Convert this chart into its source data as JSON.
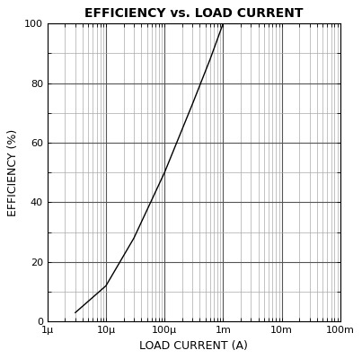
{
  "title": "EFFICIENCY vs. LOAD CURRENT",
  "xlabel": "LOAD CURRENT (A)",
  "ylabel": "EFFICIENCY (%)",
  "xlim": [
    1e-06,
    0.1
  ],
  "ylim": [
    0,
    100
  ],
  "curve_x": [
    3e-06,
    1e-05,
    3e-05,
    0.0001,
    0.0003,
    0.0006,
    0.001,
    0.003,
    0.01,
    0.1
  ],
  "curve_y": [
    3,
    12,
    28,
    50,
    73,
    88,
    100,
    100,
    100,
    100
  ],
  "line_color": "#000000",
  "line_width": 1.0,
  "background_color": "#ffffff",
  "title_fontsize": 10,
  "label_fontsize": 9,
  "tick_fontsize": 8,
  "x_major_ticks": [
    1e-06,
    1e-05,
    0.0001,
    0.001,
    0.01,
    0.1
  ],
  "x_major_labels": [
    "1μ",
    "10μ",
    "100μ",
    "1m",
    "10m",
    "100m"
  ],
  "y_major_ticks": [
    0,
    20,
    40,
    60,
    80,
    100
  ],
  "y_minor_ticks": [
    10,
    30,
    50,
    70,
    90
  ],
  "fig_width": 4.03,
  "fig_height": 4.0,
  "major_grid_color": "#555555",
  "minor_grid_color": "#aaaaaa",
  "major_grid_lw": 0.8,
  "minor_grid_lw": 0.5
}
